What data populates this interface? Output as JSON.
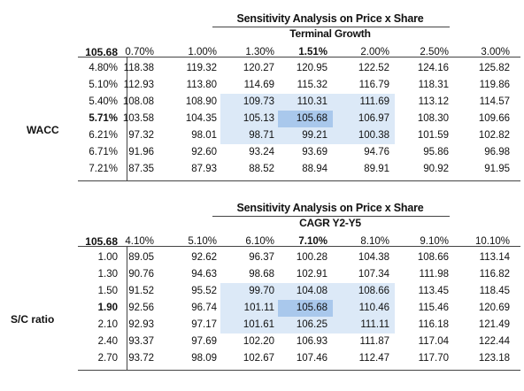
{
  "tables": [
    {
      "title": "Sensitivity Analysis on Price x Share",
      "subtitle": "Terminal Growth",
      "corner_value": "105.68",
      "row_axis_label": "WACC",
      "columns": [
        "0.70%",
        "1.00%",
        "1.30%",
        "1.51%",
        "2.00%",
        "2.50%",
        "3.00%"
      ],
      "rows": [
        "4.80%",
        "5.10%",
        "5.40%",
        "5.71%",
        "6.21%",
        "6.71%",
        "7.21%"
      ],
      "base_row_index": 3,
      "base_col_index": 3,
      "values": [
        [
          "118.38",
          "119.32",
          "120.27",
          "120.95",
          "122.52",
          "124.16",
          "125.82"
        ],
        [
          "112.93",
          "113.80",
          "114.69",
          "115.32",
          "116.79",
          "118.31",
          "119.86"
        ],
        [
          "108.08",
          "108.90",
          "109.73",
          "110.31",
          "111.69",
          "113.12",
          "114.57"
        ],
        [
          "103.58",
          "104.35",
          "105.13",
          "105.68",
          "106.97",
          "108.30",
          "109.66"
        ],
        [
          "97.32",
          "98.01",
          "98.71",
          "99.21",
          "100.38",
          "101.59",
          "102.82"
        ],
        [
          "91.96",
          "92.60",
          "93.24",
          "93.69",
          "94.76",
          "95.86",
          "96.98"
        ],
        [
          "87.35",
          "87.93",
          "88.52",
          "88.94",
          "89.91",
          "90.92",
          "91.95"
        ]
      ]
    },
    {
      "title": "Sensitivity Analysis on Price x Share",
      "subtitle": "CAGR Y2-Y5",
      "corner_value": "105.68",
      "row_axis_label": "S/C ratio",
      "columns": [
        "4.10%",
        "5.10%",
        "6.10%",
        "7.10%",
        "8.10%",
        "9.10%",
        "10.10%"
      ],
      "rows": [
        "1.00",
        "1.30",
        "1.50",
        "1.90",
        "2.10",
        "2.40",
        "2.70"
      ],
      "base_row_index": 3,
      "base_col_index": 3,
      "values": [
        [
          "89.05",
          "92.62",
          "96.37",
          "100.28",
          "104.38",
          "108.66",
          "113.14"
        ],
        [
          "90.76",
          "94.63",
          "98.68",
          "102.91",
          "107.34",
          "111.98",
          "116.82"
        ],
        [
          "91.52",
          "95.52",
          "99.70",
          "104.08",
          "108.66",
          "113.45",
          "118.45"
        ],
        [
          "92.56",
          "96.74",
          "101.11",
          "105.68",
          "110.46",
          "115.46",
          "120.69"
        ],
        [
          "92.93",
          "97.17",
          "101.61",
          "106.25",
          "111.11",
          "116.18",
          "121.49"
        ],
        [
          "93.37",
          "97.69",
          "102.20",
          "106.93",
          "111.87",
          "117.04",
          "122.44"
        ],
        [
          "93.72",
          "98.09",
          "102.67",
          "107.46",
          "112.47",
          "117.70",
          "123.18"
        ]
      ]
    }
  ],
  "colors": {
    "highlight_light": "#dce9f7",
    "highlight_dark": "#a9c8ec",
    "rule": "#444444"
  }
}
